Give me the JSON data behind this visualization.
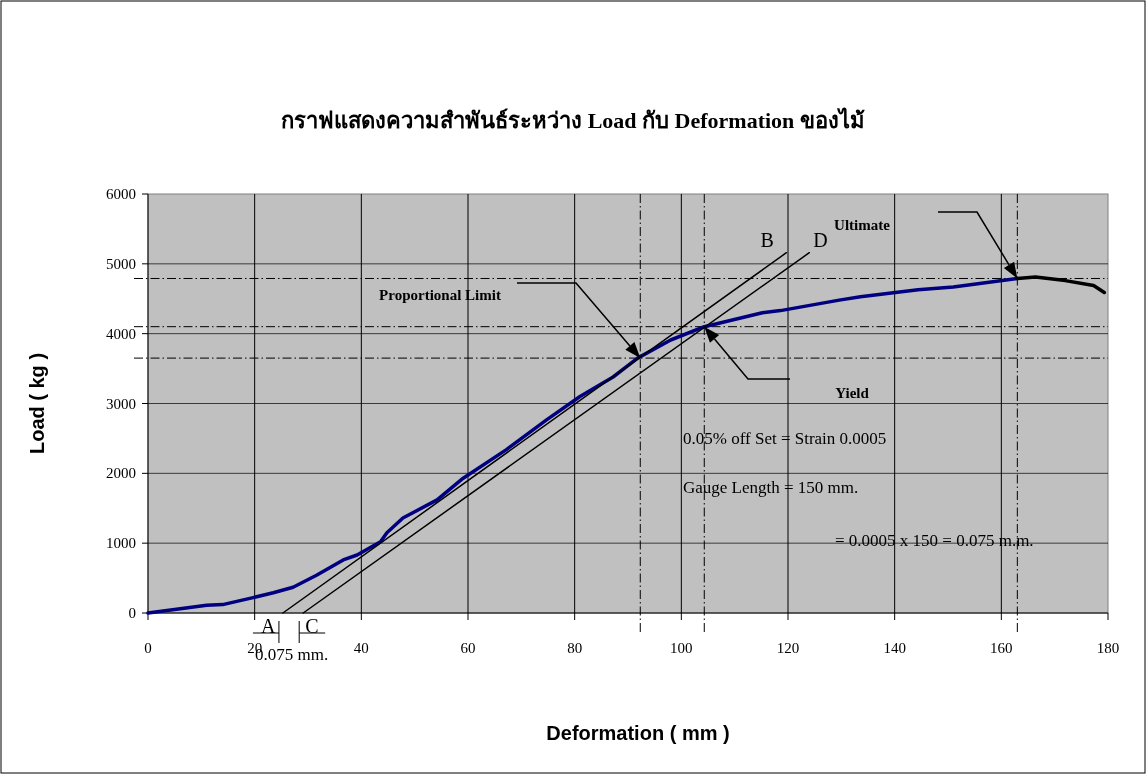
{
  "chart_data": {
    "type": "line",
    "title": "กราฟแสดงความสำพันธ์ระหว่าง Load กับ Deformation ของไม้",
    "xlabel": "Deformation ( mm )",
    "ylabel": "Load ( kg )",
    "xlim": [
      0,
      180
    ],
    "xticks": [
      0,
      20,
      40,
      60,
      80,
      100,
      120,
      140,
      160,
      180
    ],
    "ylim": [
      0,
      6000
    ],
    "yticks": [
      0,
      1000,
      2000,
      3000,
      4000,
      5000,
      6000
    ],
    "grid": true,
    "series": [
      {
        "color": "#000080",
        "x": [
          0,
          11,
          14,
          19.7,
          23.5,
          27.2,
          31.6,
          36.6,
          39.2,
          43.6,
          44.8,
          47.8,
          54.2,
          59.1,
          67.2,
          74.8,
          81,
          87.2,
          91.8,
          98,
          104.3,
          115.2,
          118.6,
          129.6,
          133.6,
          144.4,
          151,
          163
        ],
        "values": [
          0,
          110,
          120,
          220,
          290,
          370,
          540,
          760,
          830,
          1020,
          1150,
          1360,
          1620,
          1930,
          2340,
          2770,
          3100,
          3380,
          3650,
          3910,
          4100,
          4300,
          4330,
          4480,
          4530,
          4630,
          4670,
          4790
        ]
      },
      {
        "color": "#000000",
        "x": [
          163,
          166.4,
          172,
          177.3,
          179.3
        ],
        "values": [
          4790,
          4810,
          4760,
          4690,
          4590
        ]
      },
      {
        "color": "#000000",
        "x": [
          25.3,
          119.7
        ],
        "values": [
          0,
          5160
        ]
      },
      {
        "color": "#000000",
        "x": [
          29.1,
          124
        ],
        "values": [
          0,
          5160
        ]
      }
    ],
    "ref_lines": [
      {
        "axis": "y",
        "value": 4790,
        "line_style": "dashed"
      },
      {
        "axis": "y",
        "value": 4100,
        "line_style": "dashed"
      },
      {
        "axis": "y",
        "value": 3650,
        "line_style": "dashed"
      },
      {
        "axis": "x",
        "value": 92.3,
        "line_style": "dashed"
      },
      {
        "axis": "x",
        "value": 104.3,
        "line_style": "dashed"
      },
      {
        "axis": "x",
        "value": 163,
        "line_style": "dashed"
      }
    ],
    "annotations": [
      {
        "text": "A",
        "x": 25.3,
        "y": 0
      },
      {
        "text": "B",
        "x": 119.7,
        "y": 5160
      },
      {
        "text": "C",
        "x": 29.1,
        "y": 0
      },
      {
        "text": "D",
        "x": 124,
        "y": 5160
      },
      "Proportional Limit",
      "Yield",
      "Ultimate",
      "0.075 mm.",
      "0.05% off Set = Strain 0.0005",
      "Gauge Length = 150 mm.",
      "= 0.0005 x 150 = 0.075 m.m."
    ]
  }
}
